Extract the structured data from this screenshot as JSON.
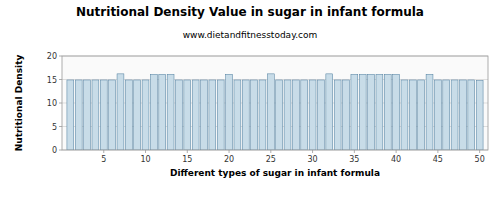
{
  "chart_data": {
    "type": "bar",
    "title": "Nutritional Density Value in sugar in infant formula",
    "subtitle": "www.dietandfitnesstoday.com",
    "xlabel": "Different types of sugar in infant formula",
    "ylabel": "Nutritional Density",
    "x": [
      1,
      2,
      3,
      4,
      5,
      6,
      7,
      8,
      9,
      10,
      11,
      12,
      13,
      14,
      15,
      16,
      17,
      18,
      19,
      20,
      21,
      22,
      23,
      24,
      25,
      26,
      27,
      28,
      29,
      30,
      31,
      32,
      33,
      34,
      35,
      36,
      37,
      38,
      39,
      40,
      41,
      42,
      43,
      44,
      45,
      46,
      47,
      48,
      49,
      50
    ],
    "values": [
      14.9,
      14.9,
      14.9,
      14.9,
      14.9,
      14.9,
      16.2,
      14.9,
      14.9,
      14.9,
      16.1,
      16.1,
      16.1,
      14.9,
      14.9,
      14.9,
      14.9,
      14.9,
      14.9,
      16.1,
      14.9,
      14.9,
      14.9,
      14.9,
      16.2,
      14.9,
      14.9,
      14.9,
      14.9,
      14.9,
      14.9,
      16.2,
      14.9,
      14.9,
      16.1,
      16.1,
      16.1,
      16.1,
      16.1,
      16.1,
      14.9,
      14.9,
      14.9,
      16.1,
      14.9,
      14.9,
      14.9,
      14.9,
      14.9,
      14.8
    ],
    "color": "#c8dce8",
    "xlim": [
      0.0,
      51
    ],
    "xticks": [
      5,
      10,
      15,
      20,
      25,
      30,
      35,
      40,
      45,
      50
    ],
    "ylim": [
      0,
      20
    ],
    "yticks": [
      0,
      5,
      10,
      15,
      20
    ],
    "grid": true
  }
}
